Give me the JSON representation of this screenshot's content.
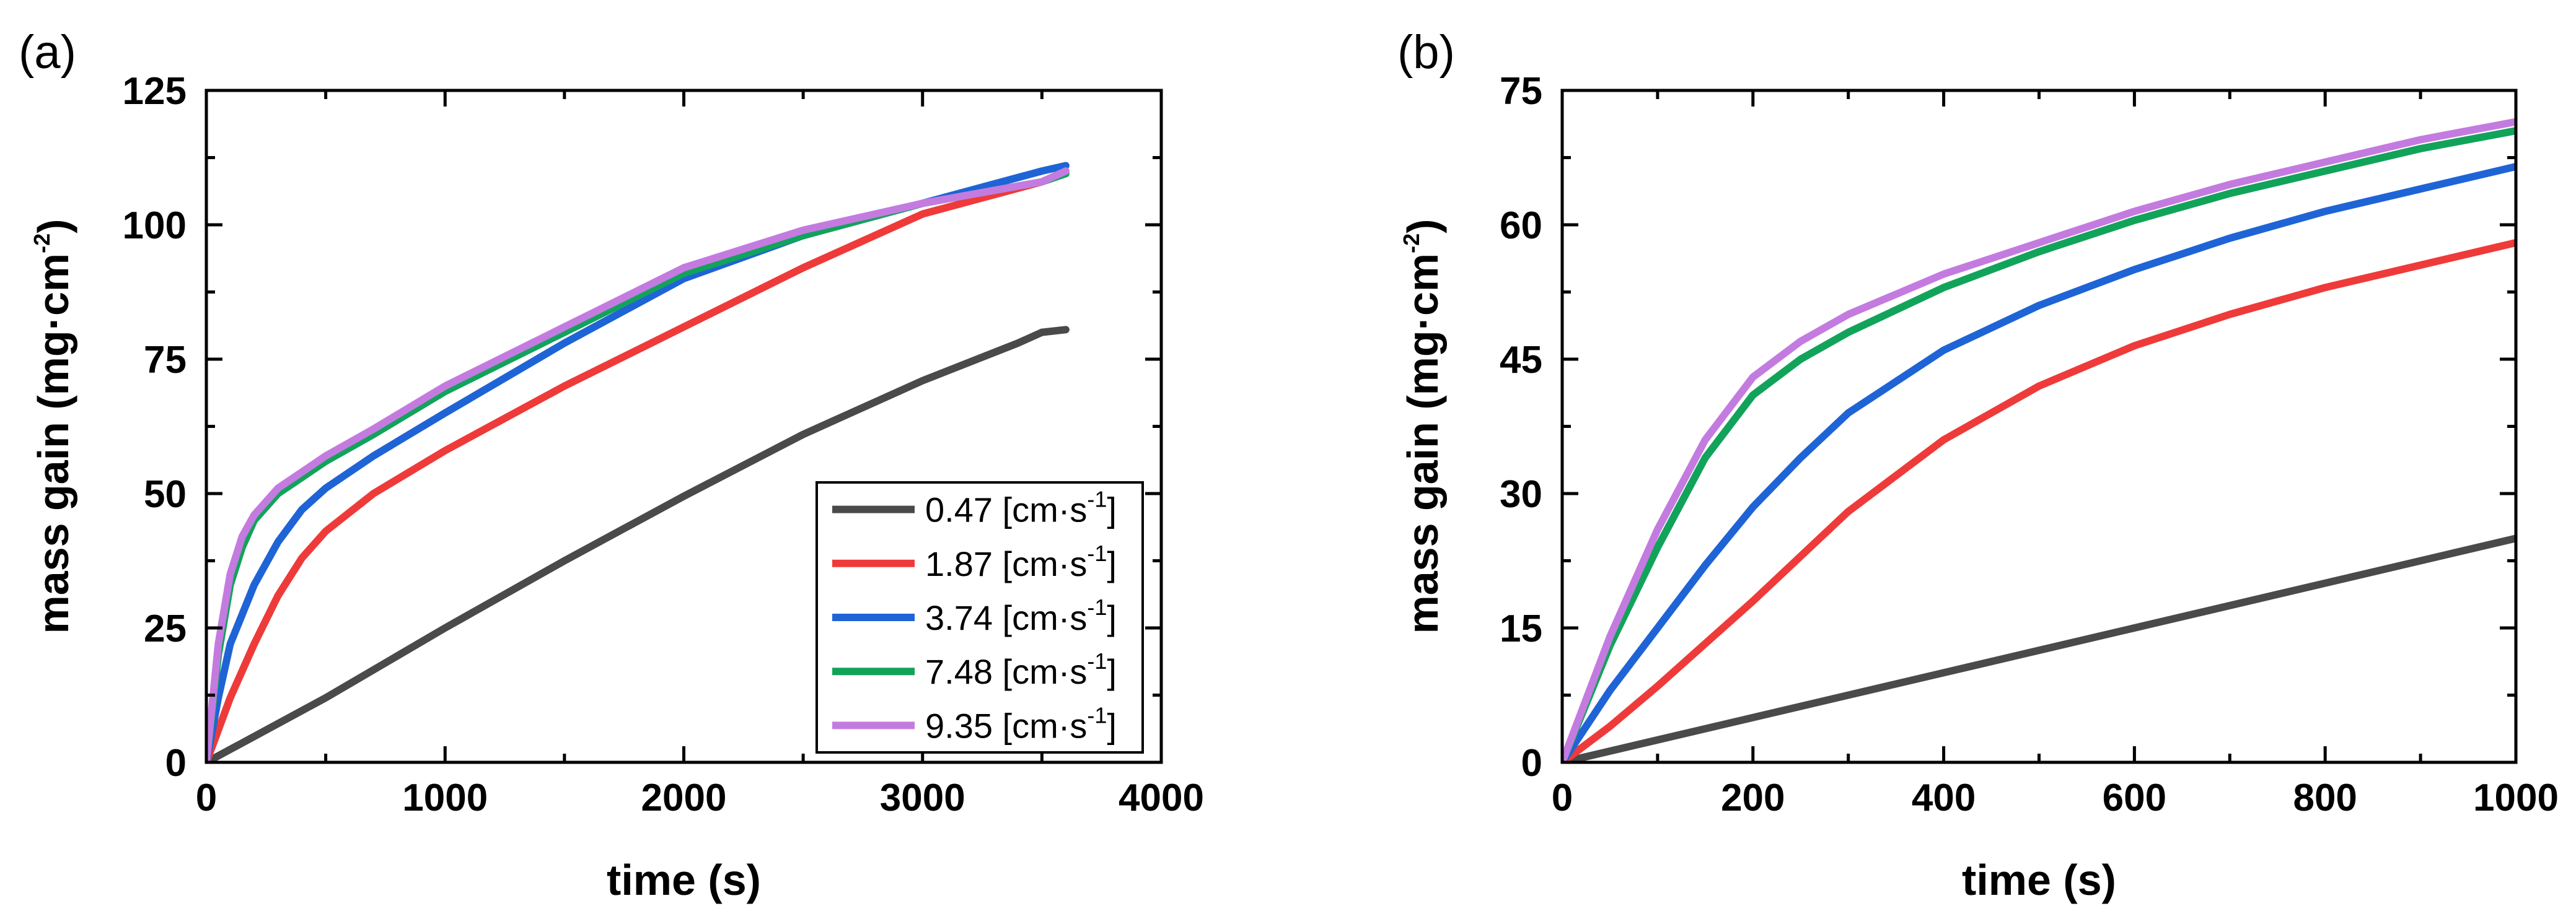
{
  "chart_data": [
    {
      "type": "line",
      "panel_label": "(a)",
      "xlabel": "time (s)",
      "ylabel_main": "mass gain (mg·cm",
      "ylabel_sup": "-2",
      "ylabel_end": ")",
      "xlim": [
        0,
        4000
      ],
      "ylim": [
        0,
        125
      ],
      "xticks": [
        0,
        1000,
        2000,
        3000,
        4000
      ],
      "yticks": [
        0,
        25,
        50,
        75,
        100,
        125
      ],
      "grid": false,
      "legend_position": "bottom-right",
      "series": [
        {
          "name": "0.47 [cm·s",
          "sup": "-1",
          "close": "]",
          "color": "#4a4a4a",
          "x": [
            0,
            500,
            1000,
            1500,
            2000,
            2500,
            3000,
            3400,
            3500,
            3600
          ],
          "y": [
            0,
            12,
            25,
            37.5,
            49.5,
            61,
            71,
            78,
            80,
            80.5
          ]
        },
        {
          "name": "1.87 [cm·s",
          "sup": "-1",
          "close": "]",
          "color": "#ef3a3a",
          "x": [
            0,
            100,
            200,
            300,
            400,
            500,
            700,
            1000,
            1500,
            2000,
            2500,
            3000,
            3500,
            3600
          ],
          "y": [
            0,
            12,
            22,
            31,
            38,
            43,
            50,
            58,
            70,
            81,
            92,
            102,
            108,
            110
          ]
        },
        {
          "name": "3.74 [cm·s",
          "sup": "-1",
          "close": "]",
          "color": "#1f64d6",
          "x": [
            0,
            50,
            100,
            200,
            300,
            400,
            500,
            700,
            1000,
            1500,
            2000,
            2500,
            3000,
            3500,
            3600
          ],
          "y": [
            0,
            12,
            22,
            33,
            41,
            47,
            51,
            57,
            65,
            78,
            90,
            98,
            104,
            110,
            111
          ]
        },
        {
          "name": "7.48 [cm·s",
          "sup": "-1",
          "close": "]",
          "color": "#12a35b",
          "x": [
            0,
            50,
            100,
            150,
            200,
            300,
            400,
            500,
            700,
            1000,
            1500,
            2000,
            2500,
            3000,
            3500,
            3600
          ],
          "y": [
            0,
            20,
            33,
            40,
            45,
            50,
            53,
            56,
            61,
            69,
            80,
            91,
            98,
            104,
            108,
            109.5
          ]
        },
        {
          "name": "9.35 [cm·s",
          "sup": "-1",
          "close": "]",
          "color": "#c47be0",
          "x": [
            0,
            50,
            100,
            150,
            200,
            300,
            400,
            500,
            700,
            1000,
            1500,
            2000,
            2500,
            3000,
            3500,
            3600
          ],
          "y": [
            0,
            22,
            35,
            42,
            46,
            51,
            54,
            57,
            62,
            70,
            81,
            92,
            99,
            104,
            108,
            110
          ]
        }
      ]
    },
    {
      "type": "line",
      "panel_label": "(b)",
      "xlabel": "time (s)",
      "ylabel_main": "mass gain (mg·cm",
      "ylabel_sup": "-2",
      "ylabel_end": ")",
      "xlim": [
        0,
        1000
      ],
      "ylim": [
        0,
        75
      ],
      "xticks": [
        0,
        200,
        400,
        600,
        800,
        1000
      ],
      "yticks": [
        0,
        15,
        30,
        45,
        60,
        75
      ],
      "grid": false,
      "series": [
        {
          "color": "#4a4a4a",
          "x": [
            0,
            200,
            400,
            600,
            800,
            1000
          ],
          "y": [
            0,
            5,
            10,
            15,
            20,
            25
          ]
        },
        {
          "color": "#ef3a3a",
          "x": [
            0,
            50,
            100,
            200,
            300,
            400,
            500,
            600,
            700,
            800,
            900,
            1000
          ],
          "y": [
            0,
            4,
            8.5,
            18,
            28,
            36,
            42,
            46.5,
            50,
            53,
            55.5,
            58
          ]
        },
        {
          "color": "#1f64d6",
          "x": [
            0,
            50,
            100,
            150,
            200,
            250,
            300,
            400,
            500,
            600,
            700,
            800,
            900,
            1000
          ],
          "y": [
            0,
            8,
            15,
            22,
            28.5,
            34,
            39,
            46,
            51,
            55,
            58.5,
            61.5,
            64,
            66.5
          ]
        },
        {
          "color": "#12a35b",
          "x": [
            0,
            50,
            100,
            150,
            200,
            250,
            300,
            400,
            500,
            600,
            700,
            800,
            900,
            1000
          ],
          "y": [
            0,
            13,
            24,
            34,
            41,
            45,
            48,
            53,
            57,
            60.5,
            63.5,
            66,
            68.5,
            70.5
          ]
        },
        {
          "color": "#c47be0",
          "x": [
            0,
            50,
            100,
            150,
            200,
            250,
            300,
            400,
            500,
            600,
            700,
            800,
            900,
            1000
          ],
          "y": [
            0,
            14,
            26,
            36,
            43,
            47,
            50,
            54.5,
            58,
            61.5,
            64.5,
            67,
            69.5,
            71.5
          ]
        }
      ]
    }
  ]
}
